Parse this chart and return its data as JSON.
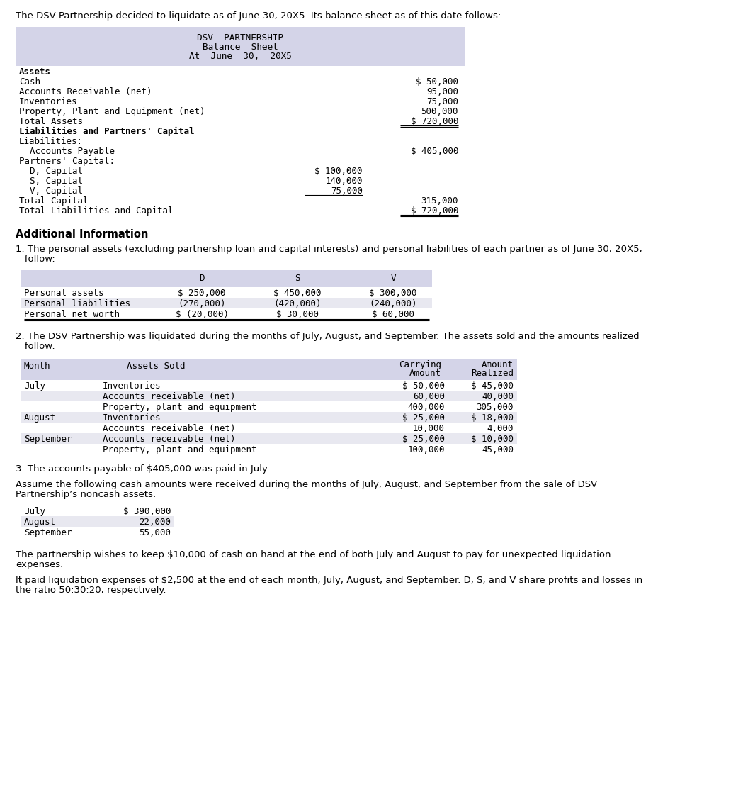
{
  "intro_text": "The DSV Partnership decided to liquidate as of June 30, 20X5. Its balance sheet as of this date follows:",
  "bs_title1": "DSV  PARTNERSHIP",
  "bs_title2": "Balance  Sheet",
  "bs_title3": "At  June  30,  20X5",
  "bs_header_bg": "#d4d4e8",
  "addl_info_title": "Additional Information",
  "note1_text_l1": "1. The personal assets (excluding partnership loan and capital interests) and personal liabilities of each partner as of June 30, 20X5,",
  "note1_text_l2": "   follow:",
  "personal_table_bg": "#d4d4e8",
  "personal_rows": [
    {
      "label": "Personal assets",
      "D": "$ 250,000",
      "S": "$ 450,000",
      "V": "$ 300,000"
    },
    {
      "label": "Personal liabilities",
      "D": "(270,000)",
      "S": "(420,000)",
      "V": "(240,000)"
    },
    {
      "label": "Personal net worth",
      "D": "$ (20,000)",
      "S": "$ 30,000",
      "V": "$ 60,000",
      "ul": true
    }
  ],
  "note2_text_l1": "2. The DSV Partnership was liquidated during the months of July, August, and September. The assets sold and the amounts realized",
  "note2_text_l2": "   follow:",
  "assets_table_bg": "#d4d4e8",
  "assets_rows": [
    {
      "month": "July",
      "asset": "Inventories",
      "carry": "$ 50,000",
      "realized": "$ 45,000"
    },
    {
      "month": "",
      "asset": "Accounts receivable (net)",
      "carry": "60,000",
      "realized": "40,000"
    },
    {
      "month": "",
      "asset": "Property, plant and equipment",
      "carry": "400,000",
      "realized": "305,000"
    },
    {
      "month": "August",
      "asset": "Inventories",
      "carry": "$ 25,000",
      "realized": "$ 18,000"
    },
    {
      "month": "",
      "asset": "Accounts receivable (net)",
      "carry": "10,000",
      "realized": "4,000"
    },
    {
      "month": "September",
      "asset": "Accounts receivable (net)",
      "carry": "$ 25,000",
      "realized": "$ 10,000"
    },
    {
      "month": "",
      "asset": "Property, plant and equipment",
      "carry": "100,000",
      "realized": "45,000"
    }
  ],
  "note3_text": "3. The accounts payable of $405,000 was paid in July.",
  "assume_l1": "Assume the following cash amounts were received during the months of July, August, and September from the sale of DSV",
  "assume_l2": "Partnership’s noncash assets:",
  "cash_rows": [
    {
      "month": "July",
      "amount": "$ 390,000"
    },
    {
      "month": "August",
      "amount": "22,000"
    },
    {
      "month": "September",
      "amount": "55,000"
    }
  ],
  "cash_table_bg": "#d4d4e8",
  "partner_l1": "The partnership wishes to keep $10,000 of cash on hand at the end of both July and August to pay for unexpected liquidation",
  "partner_l2": "expenses.",
  "liq_l1": "It paid liquidation expenses of $2,500 at the end of each month, July, August, and September. D, S, and V share profits and losses in",
  "liq_l2": "the ratio 50:30:20, respectively.",
  "bg_color": "#ffffff"
}
